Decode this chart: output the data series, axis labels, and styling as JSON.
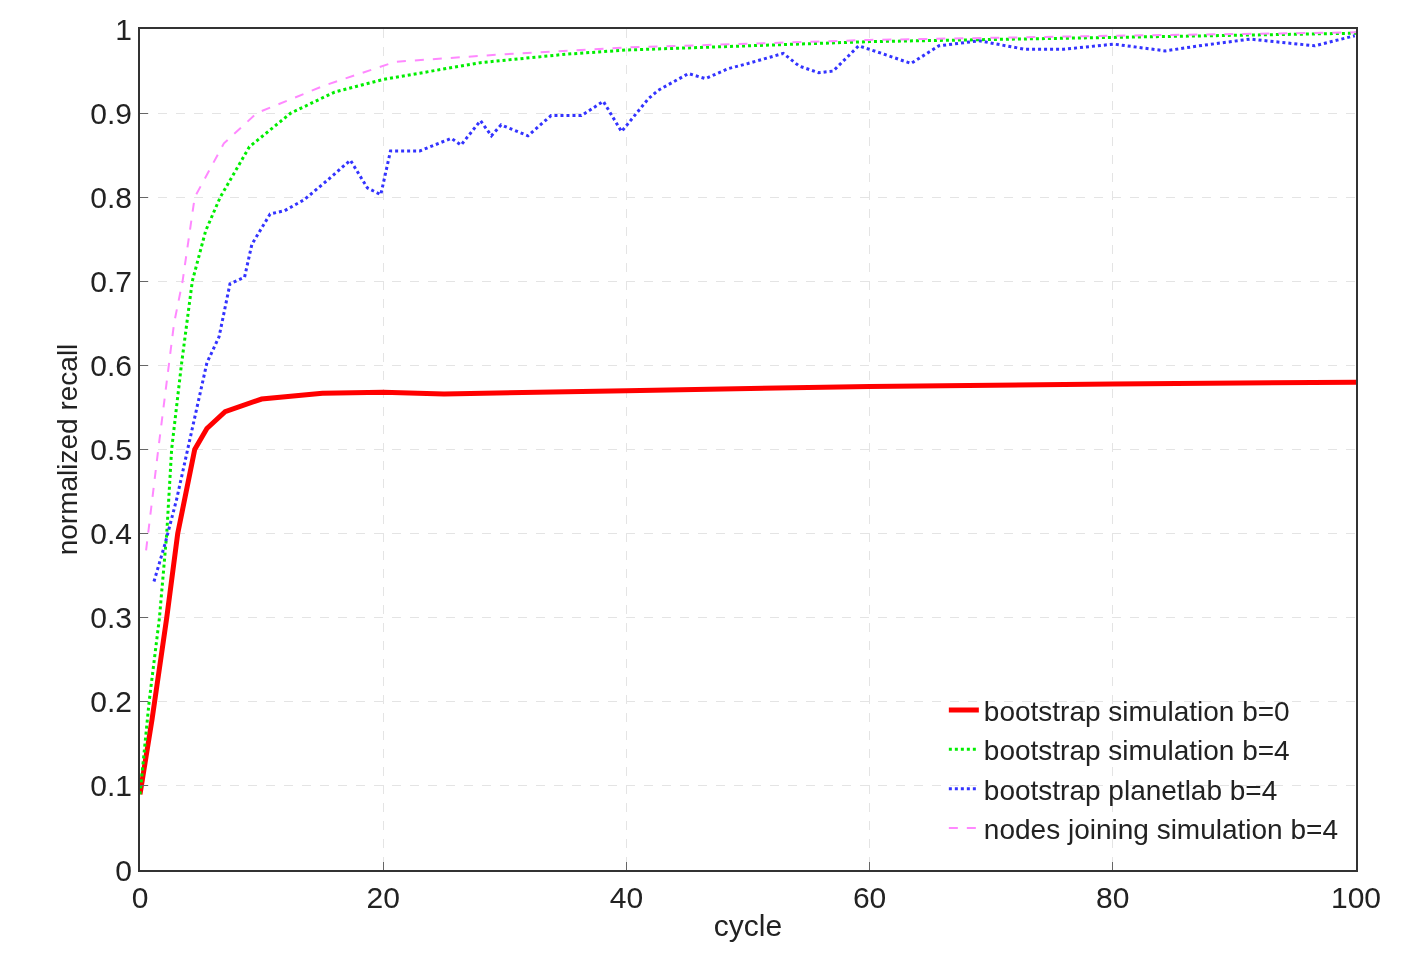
{
  "chart_data": {
    "type": "line",
    "xlabel": "cycle",
    "ylabel": "normalized recall",
    "xlim": [
      0,
      100
    ],
    "ylim": [
      0,
      1
    ],
    "xticks": [
      0,
      20,
      40,
      60,
      80,
      100
    ],
    "yticks": [
      0,
      0.1,
      0.2,
      0.3,
      0.4,
      0.5,
      0.6,
      0.7,
      0.8,
      0.9,
      1
    ],
    "grid": true,
    "legend": "bottom right",
    "marker": "none",
    "series": [
      {
        "name": "bootstrap simulation b=0",
        "color": "#ff0000",
        "line_style": "solid",
        "x": [
          0,
          1,
          2.2,
          3.1,
          4.5,
          5.5,
          7,
          10,
          15,
          20,
          25,
          40,
          60,
          80,
          100
        ],
        "values": [
          0.09,
          0.18,
          0.3,
          0.4,
          0.5,
          0.525,
          0.545,
          0.56,
          0.567,
          0.568,
          0.566,
          0.57,
          0.575,
          0.578,
          0.58
        ]
      },
      {
        "name": "bootstrap simulation b=4",
        "color": "#00ee00",
        "line_style": "dotted",
        "x": [
          0,
          0.75,
          1.6,
          2.2,
          2.6,
          3.4,
          4.3,
          5.4,
          6.6,
          9,
          12.4,
          16,
          20,
          28,
          35,
          40,
          60,
          80,
          100
        ],
        "values": [
          0.09,
          0.2,
          0.3,
          0.4,
          0.5,
          0.6,
          0.7,
          0.76,
          0.8,
          0.86,
          0.9,
          0.925,
          0.94,
          0.96,
          0.97,
          0.975,
          0.985,
          0.99,
          0.995
        ]
      },
      {
        "name": "bootstrap planetlab b=4",
        "color": "#3333ff",
        "line_style": "dotted",
        "x": [
          1.15,
          2.1,
          3,
          4.3,
          5.5,
          6.5,
          7.4,
          8.6,
          9.2,
          10.7,
          11.9,
          13.5,
          15.4,
          17.3,
          18.7,
          19.8,
          20.6,
          23,
          25.6,
          26.4,
          28,
          28.9,
          29.7,
          31.9,
          33.8,
          36.3,
          38.1,
          39.6,
          41.8,
          42.6,
          45.1,
          46.5,
          48.4,
          50,
          52.9,
          54.2,
          55.8,
          57,
          59.1,
          61.2,
          63.4,
          65.7,
          69,
          72.7,
          76,
          80.1,
          84.3,
          87.1,
          91.3,
          96.6,
          99.9
        ],
        "values": [
          0.343,
          0.39,
          0.44,
          0.525,
          0.603,
          0.634,
          0.697,
          0.705,
          0.744,
          0.78,
          0.784,
          0.797,
          0.82,
          0.844,
          0.811,
          0.803,
          0.855,
          0.855,
          0.87,
          0.862,
          0.891,
          0.873,
          0.886,
          0.873,
          0.897,
          0.897,
          0.914,
          0.878,
          0.917,
          0.927,
          0.947,
          0.941,
          0.953,
          0.959,
          0.971,
          0.956,
          0.948,
          0.95,
          0.98,
          0.97,
          0.959,
          0.98,
          0.986,
          0.976,
          0.976,
          0.982,
          0.974,
          0.98,
          0.988,
          0.98,
          0.992
        ]
      },
      {
        "name": "nodes joining simulation b=4",
        "color": "#ff88ff",
        "line_style": "dashed",
        "x": [
          0.5,
          1.5,
          2.8,
          3.5,
          4.5,
          6.9,
          9.6,
          15.2,
          21,
          30,
          40,
          60,
          80,
          100
        ],
        "values": [
          0.38,
          0.5,
          0.65,
          0.7,
          0.8,
          0.864,
          0.9,
          0.933,
          0.961,
          0.97,
          0.978,
          0.987,
          0.992,
          0.996
        ]
      }
    ]
  }
}
